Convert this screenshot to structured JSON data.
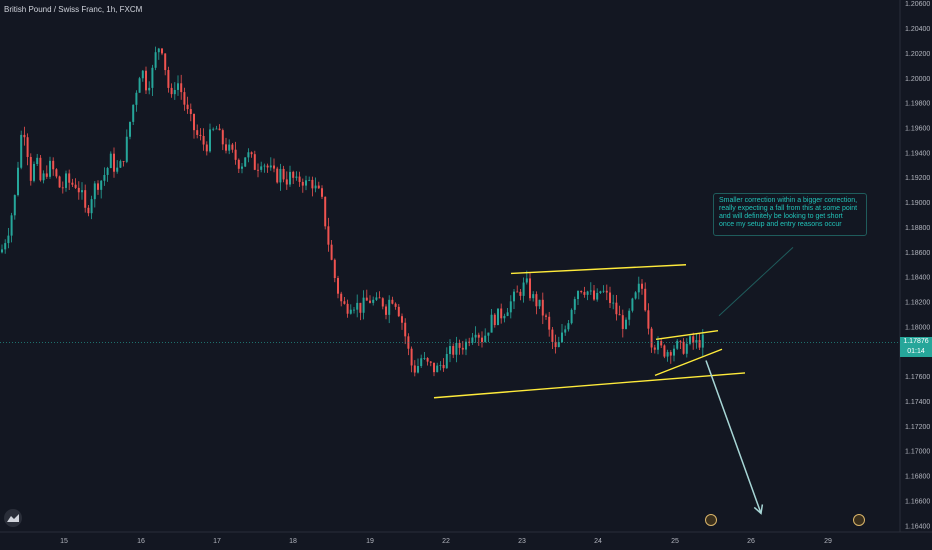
{
  "header": {
    "symbol_title": "British Pound / Swiss Franc, 1h, FXCM"
  },
  "price_label": {
    "value": "1.17876",
    "countdown": "01:14"
  },
  "annotation": {
    "lines": [
      "Smaller correction within a bigger correction,",
      "really expecting a fall from this at some point",
      "and will definitely be looking to get short",
      "once my setup and entry reasons occur"
    ]
  },
  "colors": {
    "background": "#131722",
    "up": "#26a69a",
    "down": "#ef5350",
    "trendline": "#ffeb3b",
    "projection_arrow": "#a7d6d6",
    "axis_text": "#b2b5be"
  },
  "icons": {
    "logo": "tradingview-logo-icon",
    "event_1": "event-marker-icon",
    "event_2": "event-marker-icon"
  },
  "chart_data": {
    "type": "candlestick",
    "title": "British Pound / Swiss Franc, 1h, FXCM",
    "x_tick_labels": [
      "15",
      "16",
      "17",
      "18",
      "19",
      "22",
      "23",
      "24",
      "25",
      "26",
      "29"
    ],
    "y_tick_labels": [
      "1.20600",
      "1.20400",
      "1.20200",
      "1.20000",
      "1.19800",
      "1.19600",
      "1.19400",
      "1.19200",
      "1.19000",
      "1.18800",
      "1.18600",
      "1.18400",
      "1.18200",
      "1.18000",
      "1.17800",
      "1.17600",
      "1.17400",
      "1.17200",
      "1.17000",
      "1.16800",
      "1.16600",
      "1.16400"
    ],
    "ylim": [
      1.1635,
      1.2063
    ],
    "last_price": 1.17876,
    "grid": false,
    "close_path": [
      [
        0,
        1.186
      ],
      [
        8,
        1.188
      ],
      [
        14,
        1.1905
      ],
      [
        18,
        1.194
      ],
      [
        22,
        1.1965
      ],
      [
        26,
        1.1945
      ],
      [
        30,
        1.192
      ],
      [
        35,
        1.1935
      ],
      [
        40,
        1.1915
      ],
      [
        45,
        1.1925
      ],
      [
        50,
        1.193
      ],
      [
        55,
        1.192
      ],
      [
        60,
        1.191
      ],
      [
        65,
        1.1918
      ],
      [
        70,
        1.1915
      ],
      [
        75,
        1.1915
      ],
      [
        80,
        1.1908
      ],
      [
        85,
        1.189
      ],
      [
        90,
        1.1905
      ],
      [
        95,
        1.1915
      ],
      [
        100,
        1.1918
      ],
      [
        105,
        1.1925
      ],
      [
        110,
        1.1935
      ],
      [
        115,
        1.1925
      ],
      [
        120,
        1.193
      ],
      [
        125,
        1.1945
      ],
      [
        130,
        1.197
      ],
      [
        135,
        1.199
      ],
      [
        140,
        1.201
      ],
      [
        145,
        1.1995
      ],
      [
        150,
        1.2
      ],
      [
        155,
        1.202
      ],
      [
        160,
        1.203
      ],
      [
        165,
        1.2005
      ],
      [
        170,
        1.198
      ],
      [
        175,
        1.2
      ],
      [
        180,
        1.199
      ],
      [
        185,
        1.1975
      ],
      [
        190,
        1.1965
      ],
      [
        195,
        1.1955
      ],
      [
        200,
        1.195
      ],
      [
        205,
        1.1945
      ],
      [
        210,
        1.1955
      ],
      [
        215,
        1.196
      ],
      [
        220,
        1.195
      ],
      [
        225,
        1.1945
      ],
      [
        230,
        1.194
      ],
      [
        235,
        1.1935
      ],
      [
        240,
        1.193
      ],
      [
        245,
        1.194
      ],
      [
        250,
        1.1935
      ],
      [
        255,
        1.1928
      ],
      [
        260,
        1.1935
      ],
      [
        265,
        1.193
      ],
      [
        270,
        1.1925
      ],
      [
        275,
        1.192
      ],
      [
        280,
        1.1925
      ],
      [
        285,
        1.1918
      ],
      [
        290,
        1.1922
      ],
      [
        295,
        1.1915
      ],
      [
        300,
        1.192
      ],
      [
        305,
        1.1915
      ],
      [
        310,
        1.1918
      ],
      [
        315,
        1.191
      ],
      [
        320,
        1.1905
      ],
      [
        325,
        1.188
      ],
      [
        330,
        1.1855
      ],
      [
        335,
        1.1835
      ],
      [
        340,
        1.182
      ],
      [
        345,
        1.1815
      ],
      [
        350,
        1.182
      ],
      [
        355,
        1.1818
      ],
      [
        360,
        1.1815
      ],
      [
        365,
        1.182
      ],
      [
        370,
        1.1822
      ],
      [
        375,
        1.1818
      ],
      [
        380,
        1.1822
      ],
      [
        385,
        1.1815
      ],
      [
        390,
        1.1825
      ],
      [
        395,
        1.182
      ],
      [
        400,
        1.1808
      ],
      [
        405,
        1.179
      ],
      [
        410,
        1.177
      ],
      [
        415,
        1.1765
      ],
      [
        420,
        1.1775
      ],
      [
        425,
        1.177
      ],
      [
        430,
        1.1768
      ],
      [
        435,
        1.1765
      ],
      [
        440,
        1.177
      ],
      [
        445,
        1.1775
      ],
      [
        450,
        1.178
      ],
      [
        455,
        1.1782
      ],
      [
        460,
        1.1785
      ],
      [
        465,
        1.1787
      ],
      [
        470,
        1.1795
      ],
      [
        475,
        1.18
      ],
      [
        480,
        1.179
      ],
      [
        485,
        1.1795
      ],
      [
        490,
        1.1805
      ],
      [
        495,
        1.1808
      ],
      [
        500,
        1.181
      ],
      [
        505,
        1.1815
      ],
      [
        510,
        1.182
      ],
      [
        515,
        1.1825
      ],
      [
        520,
        1.183
      ],
      [
        525,
        1.1835
      ],
      [
        530,
        1.1825
      ],
      [
        535,
        1.182
      ],
      [
        540,
        1.1815
      ],
      [
        545,
        1.1805
      ],
      [
        550,
        1.179
      ],
      [
        555,
        1.178
      ],
      [
        560,
        1.179
      ],
      [
        565,
        1.18
      ],
      [
        570,
        1.1815
      ],
      [
        575,
        1.183
      ],
      [
        580,
        1.1832
      ],
      [
        585,
        1.183
      ],
      [
        590,
        1.1825
      ],
      [
        595,
        1.182
      ],
      [
        600,
        1.183
      ],
      [
        605,
        1.1825
      ],
      [
        610,
        1.182
      ],
      [
        615,
        1.1812
      ],
      [
        620,
        1.1805
      ],
      [
        625,
        1.18
      ],
      [
        630,
        1.1815
      ],
      [
        635,
        1.1825
      ],
      [
        640,
        1.1835
      ],
      [
        645,
        1.1815
      ],
      [
        650,
        1.179
      ],
      [
        655,
        1.1785
      ],
      [
        660,
        1.1782
      ],
      [
        665,
        1.178
      ],
      [
        670,
        1.1783
      ],
      [
        675,
        1.1785
      ],
      [
        680,
        1.1782
      ],
      [
        685,
        1.1785
      ],
      [
        690,
        1.1788
      ],
      [
        695,
        1.1786
      ],
      [
        700,
        1.1789
      ],
      [
        705,
        1.1788
      ]
    ],
    "trendlines": [
      {
        "name": "upper-channel",
        "points": [
          [
            511,
            1.1843
          ],
          [
            686,
            1.185
          ]
        ]
      },
      {
        "name": "lower-channel",
        "points": [
          [
            434,
            1.1743
          ],
          [
            745,
            1.1763
          ]
        ]
      },
      {
        "name": "flag-upper",
        "points": [
          [
            656,
            1.179
          ],
          [
            718,
            1.1797
          ]
        ]
      },
      {
        "name": "flag-lower",
        "points": [
          [
            655,
            1.1761
          ],
          [
            722,
            1.1782
          ]
        ]
      }
    ],
    "projection_arrow": {
      "from": [
        706,
        1.1773
      ],
      "to": [
        761,
        1.165
      ]
    },
    "connector_line": {
      "from": [
        719,
        1.1809
      ],
      "to": [
        793,
        1.1864
      ]
    }
  }
}
